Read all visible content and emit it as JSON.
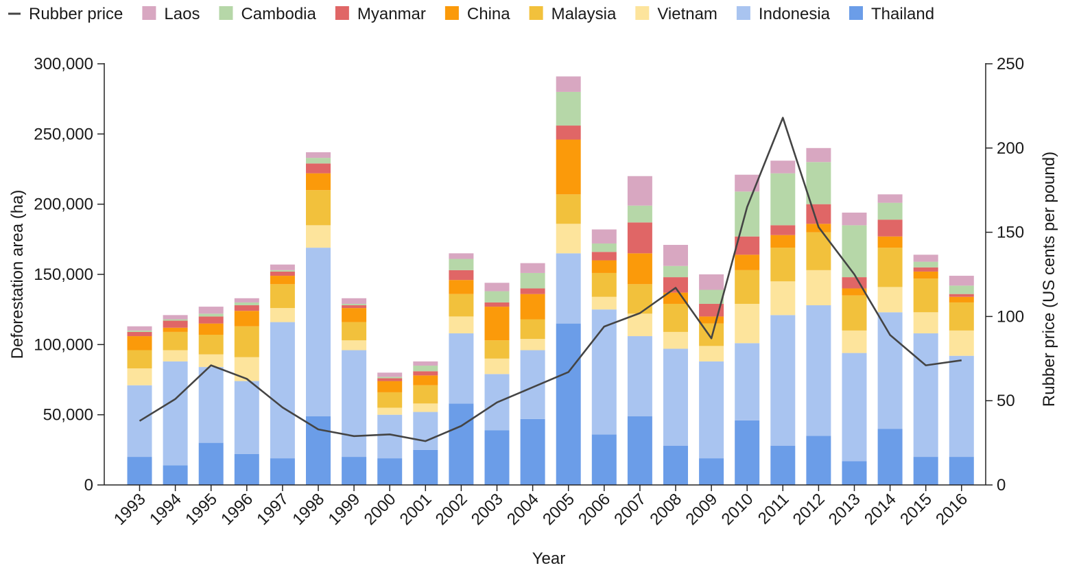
{
  "chart_data": {
    "type": "bar",
    "stacked": true,
    "xlabel": "Year",
    "ylabel": "Deforestation area (ha)",
    "y2label": "Rubber price (US cents per pound)",
    "ylim": [
      0,
      300000
    ],
    "y2lim": [
      0,
      250
    ],
    "yticks": [
      "0",
      "50,000",
      "100,000",
      "150,000",
      "200,000",
      "250,000",
      "300,000"
    ],
    "y2ticks": [
      "0",
      "50",
      "100",
      "150",
      "200",
      "250"
    ],
    "legend_position": "top",
    "grid": false,
    "categories": [
      "1993",
      "1994",
      "1995",
      "1996",
      "1997",
      "1998",
      "1999",
      "2000",
      "2001",
      "2002",
      "2003",
      "2004",
      "2005",
      "2006",
      "2007",
      "2008",
      "2009",
      "2010",
      "2011",
      "2012",
      "2013",
      "2014",
      "2015",
      "2016"
    ],
    "series": [
      {
        "name": "Thailand",
        "color": "#6b9de8",
        "values": [
          20000,
          14000,
          30000,
          22000,
          19000,
          49000,
          20000,
          19000,
          25000,
          58000,
          39000,
          47000,
          115000,
          36000,
          49000,
          28000,
          19000,
          46000,
          28000,
          35000,
          17000,
          40000,
          20000,
          20000
        ]
      },
      {
        "name": "Indonesia",
        "color": "#a9c4f0",
        "values": [
          51000,
          74000,
          54000,
          52000,
          97000,
          120000,
          76000,
          31000,
          27000,
          50000,
          40000,
          49000,
          50000,
          89000,
          57000,
          69000,
          69000,
          55000,
          93000,
          93000,
          77000,
          83000,
          88000,
          72000
        ]
      },
      {
        "name": "Vietnam",
        "color": "#fde49c",
        "values": [
          12000,
          8000,
          9000,
          17000,
          10000,
          16000,
          7000,
          5000,
          6000,
          12000,
          11000,
          8000,
          21000,
          9000,
          16000,
          12000,
          11000,
          28000,
          24000,
          25000,
          16000,
          18000,
          15000,
          18000
        ]
      },
      {
        "name": "Malaysia",
        "color": "#f2c13c",
        "values": [
          13000,
          13000,
          14000,
          22000,
          17000,
          25000,
          13000,
          11000,
          13000,
          16000,
          13000,
          14000,
          21000,
          17000,
          21000,
          20000,
          16000,
          24000,
          24000,
          27000,
          25000,
          28000,
          24000,
          20000
        ]
      },
      {
        "name": "China",
        "color": "#fb9a0a",
        "values": [
          10000,
          3000,
          8000,
          11000,
          6000,
          12000,
          10000,
          8000,
          7000,
          10000,
          24000,
          18000,
          39000,
          9000,
          22000,
          8000,
          5000,
          11000,
          9000,
          6000,
          5000,
          8000,
          5000,
          4000
        ]
      },
      {
        "name": "Myanmar",
        "color": "#e06666",
        "values": [
          3000,
          5000,
          5000,
          4000,
          3000,
          7000,
          2000,
          2000,
          3000,
          7000,
          3000,
          4000,
          10000,
          6000,
          22000,
          11000,
          9000,
          13000,
          7000,
          14000,
          8000,
          12000,
          3000,
          2000
        ]
      },
      {
        "name": "Cambodia",
        "color": "#b6d7a8",
        "values": [
          1000,
          1000,
          2000,
          2000,
          1000,
          4000,
          1000,
          1000,
          4000,
          8000,
          8000,
          11000,
          24000,
          6000,
          12000,
          8000,
          10000,
          32000,
          37000,
          30000,
          37000,
          12000,
          4000,
          6000
        ]
      },
      {
        "name": "Laos",
        "color": "#d8a7c1",
        "values": [
          3000,
          3000,
          5000,
          3000,
          4000,
          4000,
          4000,
          3000,
          3000,
          4000,
          6000,
          7000,
          11000,
          10000,
          21000,
          15000,
          11000,
          12000,
          9000,
          10000,
          9000,
          6000,
          5000,
          7000
        ]
      }
    ],
    "line": {
      "name": "Rubber price",
      "color": "#444444",
      "axis": "right",
      "values": [
        38,
        51,
        71,
        63,
        46,
        33,
        29,
        30,
        26,
        35,
        49,
        58,
        67,
        94,
        102,
        117,
        87,
        165,
        218,
        153,
        125,
        89,
        71,
        74
      ]
    },
    "legend_order": [
      "Rubber price",
      "Laos",
      "Cambodia",
      "Myanmar",
      "China",
      "Malaysia",
      "Vietnam",
      "Indonesia",
      "Thailand"
    ]
  }
}
